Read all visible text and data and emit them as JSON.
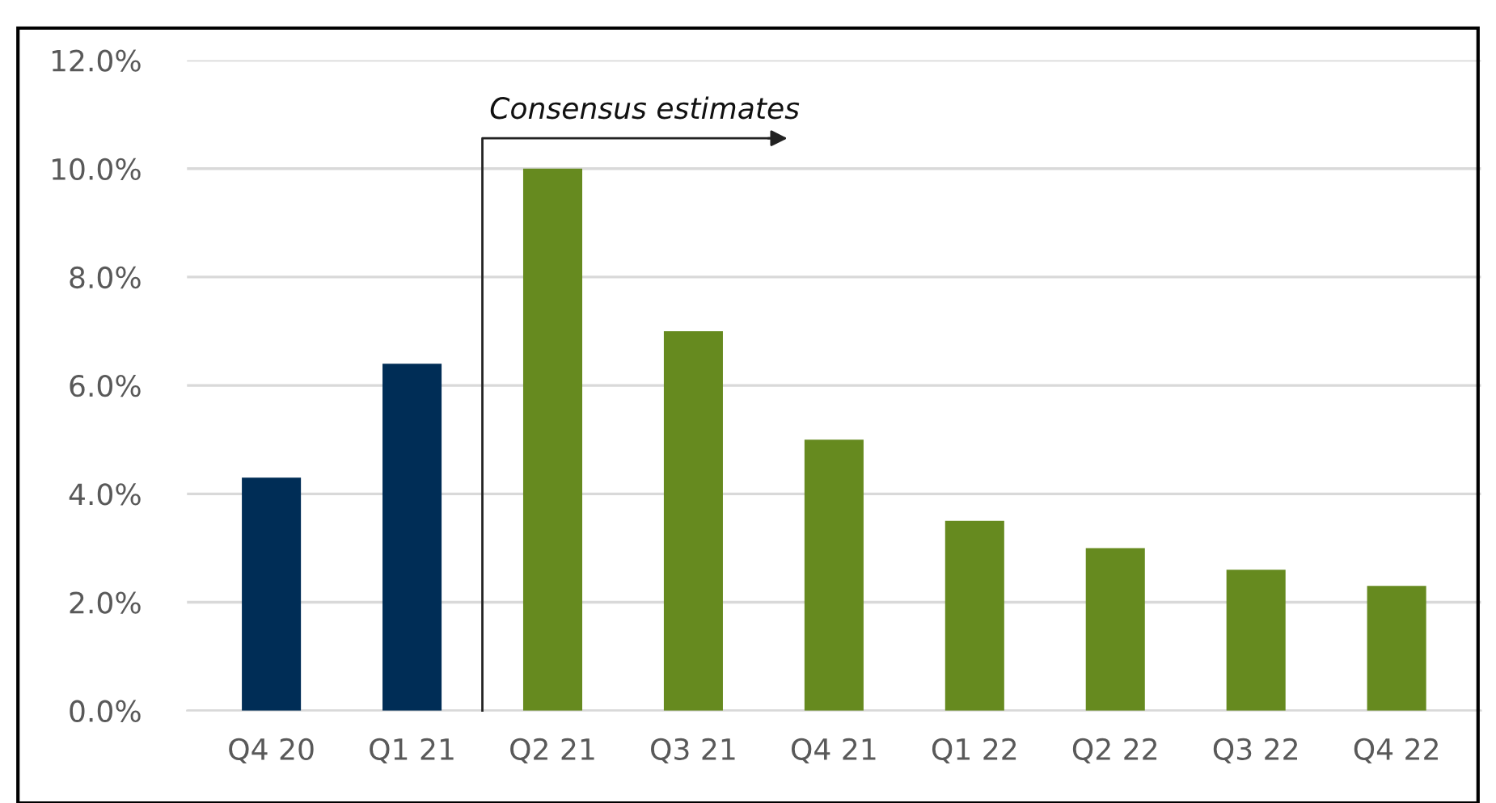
{
  "chart_data": {
    "type": "bar",
    "categories": [
      "Q4 20",
      "Q1 21",
      "Q2 21",
      "Q3 21",
      "Q4 21",
      "Q1 22",
      "Q2 22",
      "Q3 22",
      "Q4 22"
    ],
    "values": [
      4.3,
      6.4,
      10.0,
      7.0,
      5.0,
      3.5,
      3.0,
      2.6,
      2.3
    ],
    "colors": [
      "#002d56",
      "#002d56",
      "#668a1f",
      "#668a1f",
      "#668a1f",
      "#668a1f",
      "#668a1f",
      "#668a1f",
      "#668a1f"
    ],
    "ylim": [
      0,
      12
    ],
    "yticks": [
      {
        "value": 0,
        "label": "0.0%"
      },
      {
        "value": 2,
        "label": "2.0%"
      },
      {
        "value": 4,
        "label": "4.0%"
      },
      {
        "value": 6,
        "label": "6.0%"
      },
      {
        "value": 8,
        "label": "8.0%"
      },
      {
        "value": 10,
        "label": "10.0%"
      },
      {
        "value": 12,
        "label": "12.0%"
      }
    ],
    "grid": "y",
    "legend": false,
    "annotations": [
      "Consensus estimates"
    ]
  }
}
